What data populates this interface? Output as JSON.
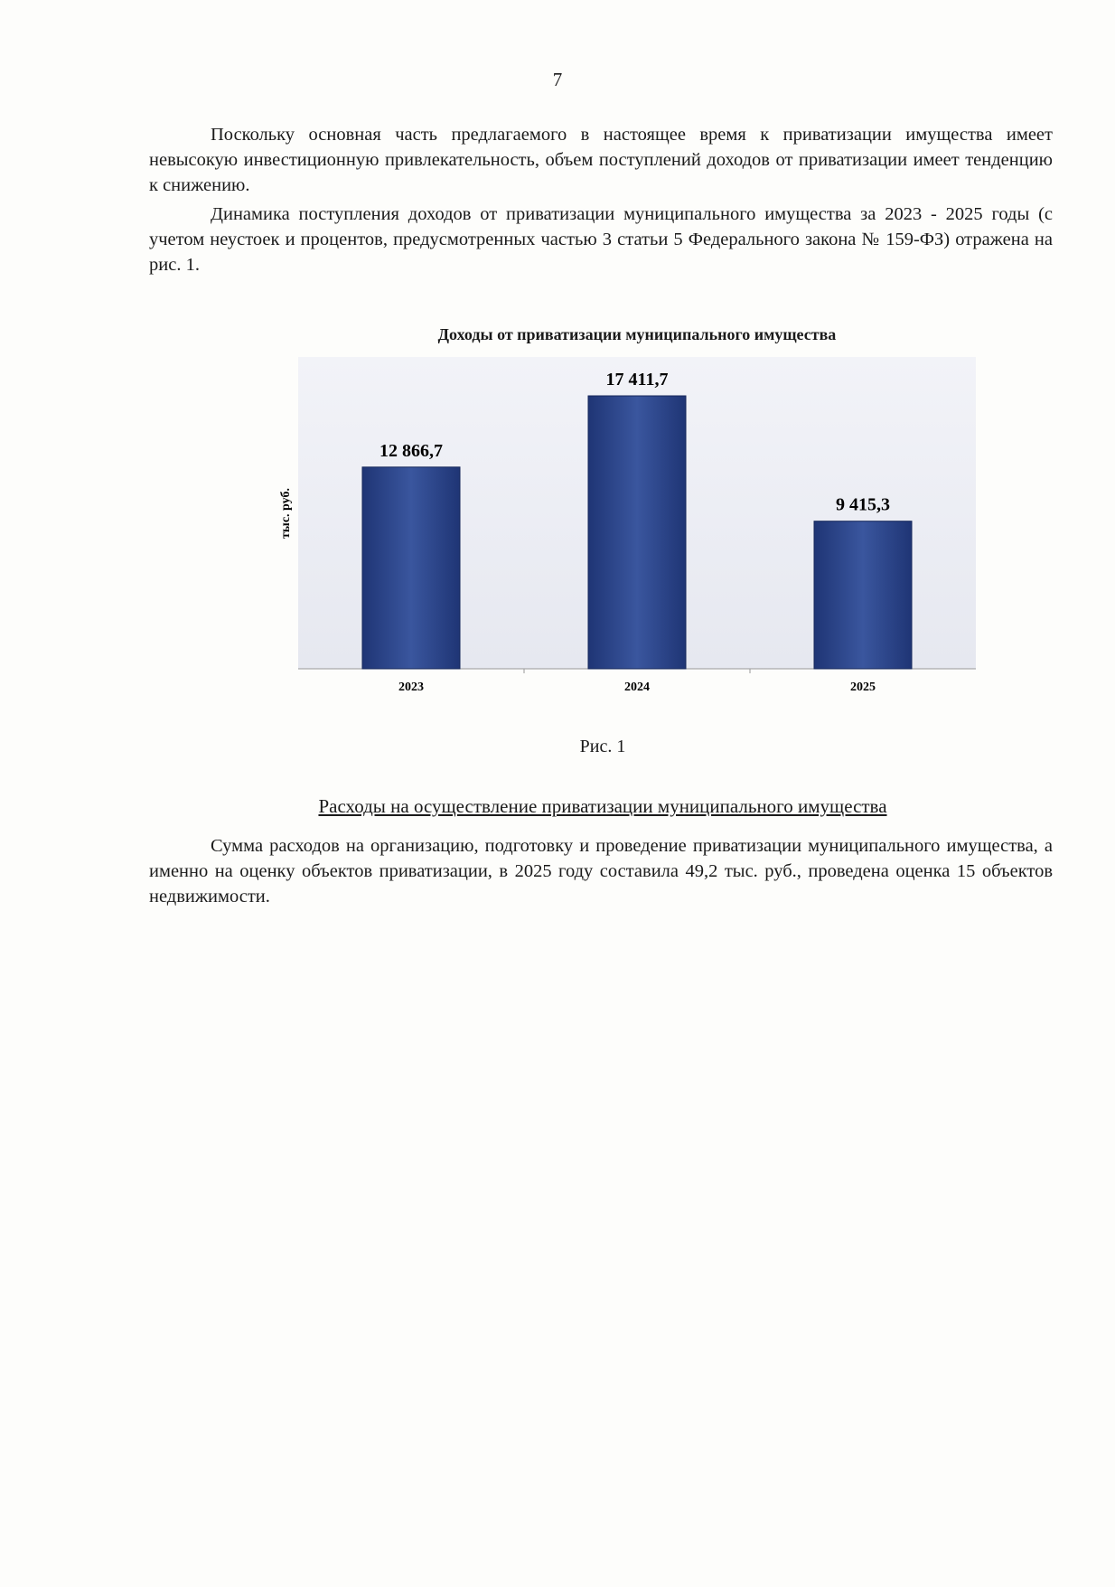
{
  "page_number": "7",
  "paragraphs": [
    "Поскольку основная часть предлагаемого в настоящее время к приватизации имущества имеет невысокую инвестиционную привлекательность, объем поступлений доходов от приватизации имеет тенденцию к снижению.",
    "Динамика поступления доходов от приватизации муниципального имущества за 2023 - 2025 годы (с учетом неустоек и процентов, предусмотренных частью 3 статьи 5 Федерального закона № 159-ФЗ) отражена на рис. 1."
  ],
  "figure_caption": "Рис. 1",
  "section_heading": "Расходы на осуществление приватизации муниципального имущества",
  "section_paragraph": "Сумма расходов на организацию, подготовку и проведение приватизации муниципального имущества, а именно на оценку объектов приватизации, в 2025 году составила 49,2 тыс. руб., проведена оценка 15 объектов недвижимости.",
  "chart_data": {
    "type": "bar",
    "title": "Доходы от приватизации муниципального имущества",
    "ylabel": "тыс. руб.",
    "xlabel": "",
    "categories": [
      "2023",
      "2024",
      "2025"
    ],
    "values": [
      12866.7,
      17411.7,
      9415.3
    ],
    "data_labels": [
      "12 866,7",
      "17 411,7",
      "9 415,3"
    ],
    "ylim": [
      0,
      17411.7
    ],
    "grid": false,
    "bar_color": "#2f4a8f",
    "background_color": "#eef0f6"
  }
}
